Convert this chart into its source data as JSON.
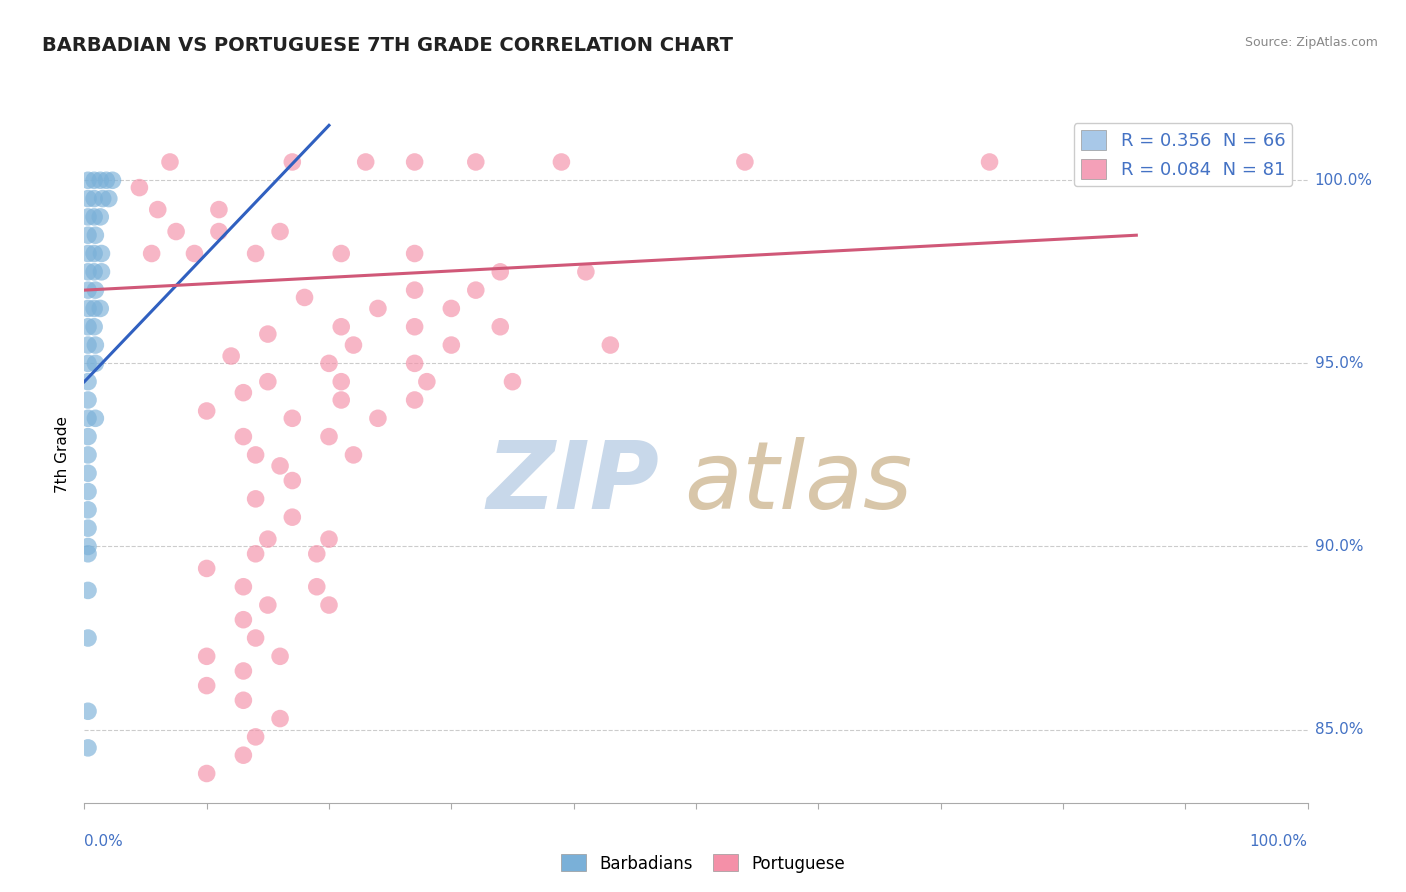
{
  "title": "BARBADIAN VS PORTUGUESE 7TH GRADE CORRELATION CHART",
  "source": "Source: ZipAtlas.com",
  "ylabel": "7th Grade",
  "y_ticks": [
    100.0,
    95.0,
    90.0,
    85.0
  ],
  "xlim": [
    0.0,
    100.0
  ],
  "ylim": [
    83.0,
    102.0
  ],
  "legend_entries": [
    {
      "label": "R = 0.356  N = 66",
      "color": "#a8c8e8"
    },
    {
      "label": "R = 0.084  N = 81",
      "color": "#f4a0b8"
    }
  ],
  "barbadian_color": "#7ab0d8",
  "portuguese_color": "#f490a8",
  "trend_barbadian_color": "#3060c0",
  "trend_portuguese_color": "#d05878",
  "barbadian_points": [
    [
      0.3,
      100.0
    ],
    [
      0.8,
      100.0
    ],
    [
      1.3,
      100.0
    ],
    [
      1.8,
      100.0
    ],
    [
      2.3,
      100.0
    ],
    [
      0.3,
      99.5
    ],
    [
      0.8,
      99.5
    ],
    [
      1.5,
      99.5
    ],
    [
      2.0,
      99.5
    ],
    [
      0.3,
      99.0
    ],
    [
      0.8,
      99.0
    ],
    [
      1.3,
      99.0
    ],
    [
      0.3,
      98.5
    ],
    [
      0.9,
      98.5
    ],
    [
      0.3,
      98.0
    ],
    [
      0.8,
      98.0
    ],
    [
      1.4,
      98.0
    ],
    [
      0.3,
      97.5
    ],
    [
      0.8,
      97.5
    ],
    [
      1.4,
      97.5
    ],
    [
      0.3,
      97.0
    ],
    [
      0.9,
      97.0
    ],
    [
      0.3,
      96.5
    ],
    [
      0.8,
      96.5
    ],
    [
      1.3,
      96.5
    ],
    [
      0.3,
      96.0
    ],
    [
      0.8,
      96.0
    ],
    [
      0.3,
      95.5
    ],
    [
      0.9,
      95.5
    ],
    [
      0.3,
      95.0
    ],
    [
      0.9,
      95.0
    ],
    [
      0.3,
      94.5
    ],
    [
      0.3,
      94.0
    ],
    [
      0.3,
      93.5
    ],
    [
      0.9,
      93.5
    ],
    [
      0.3,
      93.0
    ],
    [
      0.3,
      92.5
    ],
    [
      0.3,
      92.0
    ],
    [
      0.3,
      91.5
    ],
    [
      0.3,
      91.0
    ],
    [
      0.3,
      90.5
    ],
    [
      0.3,
      89.8
    ],
    [
      0.3,
      88.8
    ],
    [
      0.3,
      87.5
    ],
    [
      0.3,
      85.5
    ],
    [
      0.3,
      84.5
    ],
    [
      0.3,
      90.0
    ]
  ],
  "portuguese_points": [
    [
      7.0,
      100.5
    ],
    [
      17.0,
      100.5
    ],
    [
      23.0,
      100.5
    ],
    [
      27.0,
      100.5
    ],
    [
      32.0,
      100.5
    ],
    [
      39.0,
      100.5
    ],
    [
      54.0,
      100.5
    ],
    [
      74.0,
      100.5
    ],
    [
      96.0,
      100.5
    ],
    [
      4.5,
      99.8
    ],
    [
      6.0,
      99.2
    ],
    [
      11.0,
      99.2
    ],
    [
      7.5,
      98.6
    ],
    [
      11.0,
      98.6
    ],
    [
      16.0,
      98.6
    ],
    [
      5.5,
      98.0
    ],
    [
      9.0,
      98.0
    ],
    [
      14.0,
      98.0
    ],
    [
      21.0,
      98.0
    ],
    [
      27.0,
      98.0
    ],
    [
      34.0,
      97.5
    ],
    [
      41.0,
      97.5
    ],
    [
      27.0,
      97.0
    ],
    [
      32.0,
      97.0
    ],
    [
      18.0,
      96.8
    ],
    [
      24.0,
      96.5
    ],
    [
      30.0,
      96.5
    ],
    [
      21.0,
      96.0
    ],
    [
      27.0,
      96.0
    ],
    [
      34.0,
      96.0
    ],
    [
      15.0,
      95.8
    ],
    [
      22.0,
      95.5
    ],
    [
      30.0,
      95.5
    ],
    [
      43.0,
      95.5
    ],
    [
      12.0,
      95.2
    ],
    [
      20.0,
      95.0
    ],
    [
      27.0,
      95.0
    ],
    [
      15.0,
      94.5
    ],
    [
      21.0,
      94.5
    ],
    [
      28.0,
      94.5
    ],
    [
      35.0,
      94.5
    ],
    [
      13.0,
      94.2
    ],
    [
      21.0,
      94.0
    ],
    [
      27.0,
      94.0
    ],
    [
      10.0,
      93.7
    ],
    [
      17.0,
      93.5
    ],
    [
      24.0,
      93.5
    ],
    [
      13.0,
      93.0
    ],
    [
      20.0,
      93.0
    ],
    [
      14.0,
      92.5
    ],
    [
      22.0,
      92.5
    ],
    [
      16.0,
      92.2
    ],
    [
      17.0,
      91.8
    ],
    [
      14.0,
      91.3
    ],
    [
      17.0,
      90.8
    ],
    [
      15.0,
      90.2
    ],
    [
      20.0,
      90.2
    ],
    [
      14.0,
      89.8
    ],
    [
      19.0,
      89.8
    ],
    [
      10.0,
      89.4
    ],
    [
      13.0,
      88.9
    ],
    [
      19.0,
      88.9
    ],
    [
      15.0,
      88.4
    ],
    [
      20.0,
      88.4
    ],
    [
      13.0,
      88.0
    ],
    [
      14.0,
      87.5
    ],
    [
      10.0,
      87.0
    ],
    [
      16.0,
      87.0
    ],
    [
      13.0,
      86.6
    ],
    [
      10.0,
      86.2
    ],
    [
      13.0,
      85.8
    ],
    [
      16.0,
      85.3
    ],
    [
      14.0,
      84.8
    ],
    [
      13.0,
      84.3
    ],
    [
      10.0,
      83.8
    ]
  ],
  "barbadian_trend_x": [
    0.0,
    20.0
  ],
  "barbadian_trend_y": [
    94.5,
    101.5
  ],
  "portuguese_trend_x": [
    0.0,
    86.0
  ],
  "portuguese_trend_y": [
    97.0,
    98.5
  ],
  "watermark_zip_color": "#c8d8ea",
  "watermark_atlas_color": "#d4c0a0",
  "grid_color": "#cccccc",
  "grid_style": "--",
  "axis_color": "#aaaaaa",
  "title_color": "#222222",
  "source_color": "#888888",
  "tick_label_color": "#4472c4",
  "legend_text_color": "#4472c4"
}
